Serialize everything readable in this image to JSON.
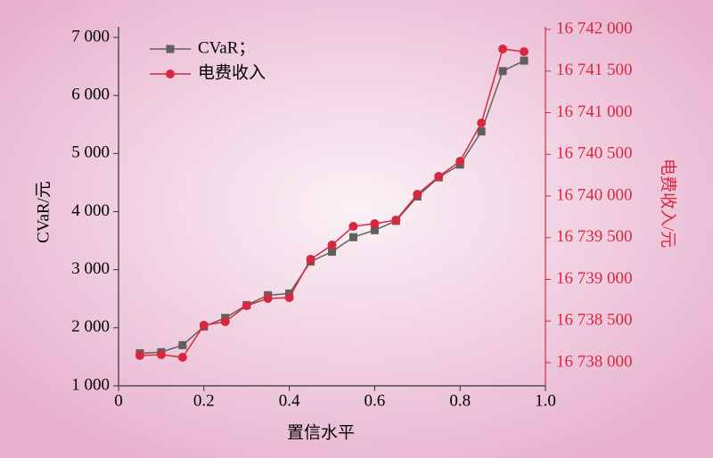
{
  "chart_data": {
    "type": "line",
    "x_label": "置信水平",
    "y_label": "CVaR/元",
    "y2_label": "电费收入/元",
    "x": [
      0.05,
      0.1,
      0.15,
      0.2,
      0.25,
      0.3,
      0.35,
      0.4,
      0.45,
      0.5,
      0.55,
      0.6,
      0.65,
      0.7,
      0.75,
      0.8,
      0.85,
      0.9,
      0.95
    ],
    "series": [
      {
        "name": "CVaR；",
        "color": "#606060",
        "marker": "square",
        "values": [
          1560,
          1580,
          1700,
          2020,
          2170,
          2390,
          2560,
          2590,
          3140,
          3310,
          3560,
          3680,
          3840,
          4260,
          4590,
          4810,
          5380,
          6420,
          6600
        ]
      },
      {
        "name": "电费收入",
        "color": "#d8283f",
        "marker": "circle",
        "axis": "y2",
        "values": [
          16738086,
          16738096,
          16738064,
          16738449,
          16738492,
          16738684,
          16738770,
          16738781,
          16739241,
          16739412,
          16739636,
          16739668,
          16739711,
          16740021,
          16740235,
          16740417,
          16740877,
          16741765,
          16741733
        ]
      }
    ],
    "xlim": [
      0,
      1
    ],
    "xticks": [
      0,
      0.2,
      0.4,
      0.6,
      0.8,
      {
        "value": 1,
        "label": "1.0"
      }
    ],
    "ylim": [
      1000,
      7184
    ],
    "yticks": [
      {
        "value": 1000,
        "label": "1 000"
      },
      {
        "value": 2000,
        "label": "2 000"
      },
      {
        "value": 3000,
        "label": "3 000"
      },
      {
        "value": 4000,
        "label": "4 000"
      },
      {
        "value": 5000,
        "label": "5 000"
      },
      {
        "value": 6000,
        "label": "6 000"
      },
      {
        "value": 7000,
        "label": "7 000"
      }
    ],
    "y2lim": [
      16737722,
      16742032
    ],
    "y2ticks": [
      {
        "value": 16738000,
        "label": "16 738 000"
      },
      {
        "value": 16738500,
        "label": "16 738 500"
      },
      {
        "value": 16739000,
        "label": "16 739 000"
      },
      {
        "value": 16739500,
        "label": "16 739 500"
      },
      {
        "value": 16740000,
        "label": "16 740 000"
      },
      {
        "value": 16740500,
        "label": "16 740 500"
      },
      {
        "value": 16741000,
        "label": "16 741 000"
      },
      {
        "value": 16741500,
        "label": "16 741 500"
      },
      {
        "value": 16742000,
        "label": "16 742 000"
      }
    ],
    "y2_color": "#d8283f",
    "legend": "upper left"
  }
}
